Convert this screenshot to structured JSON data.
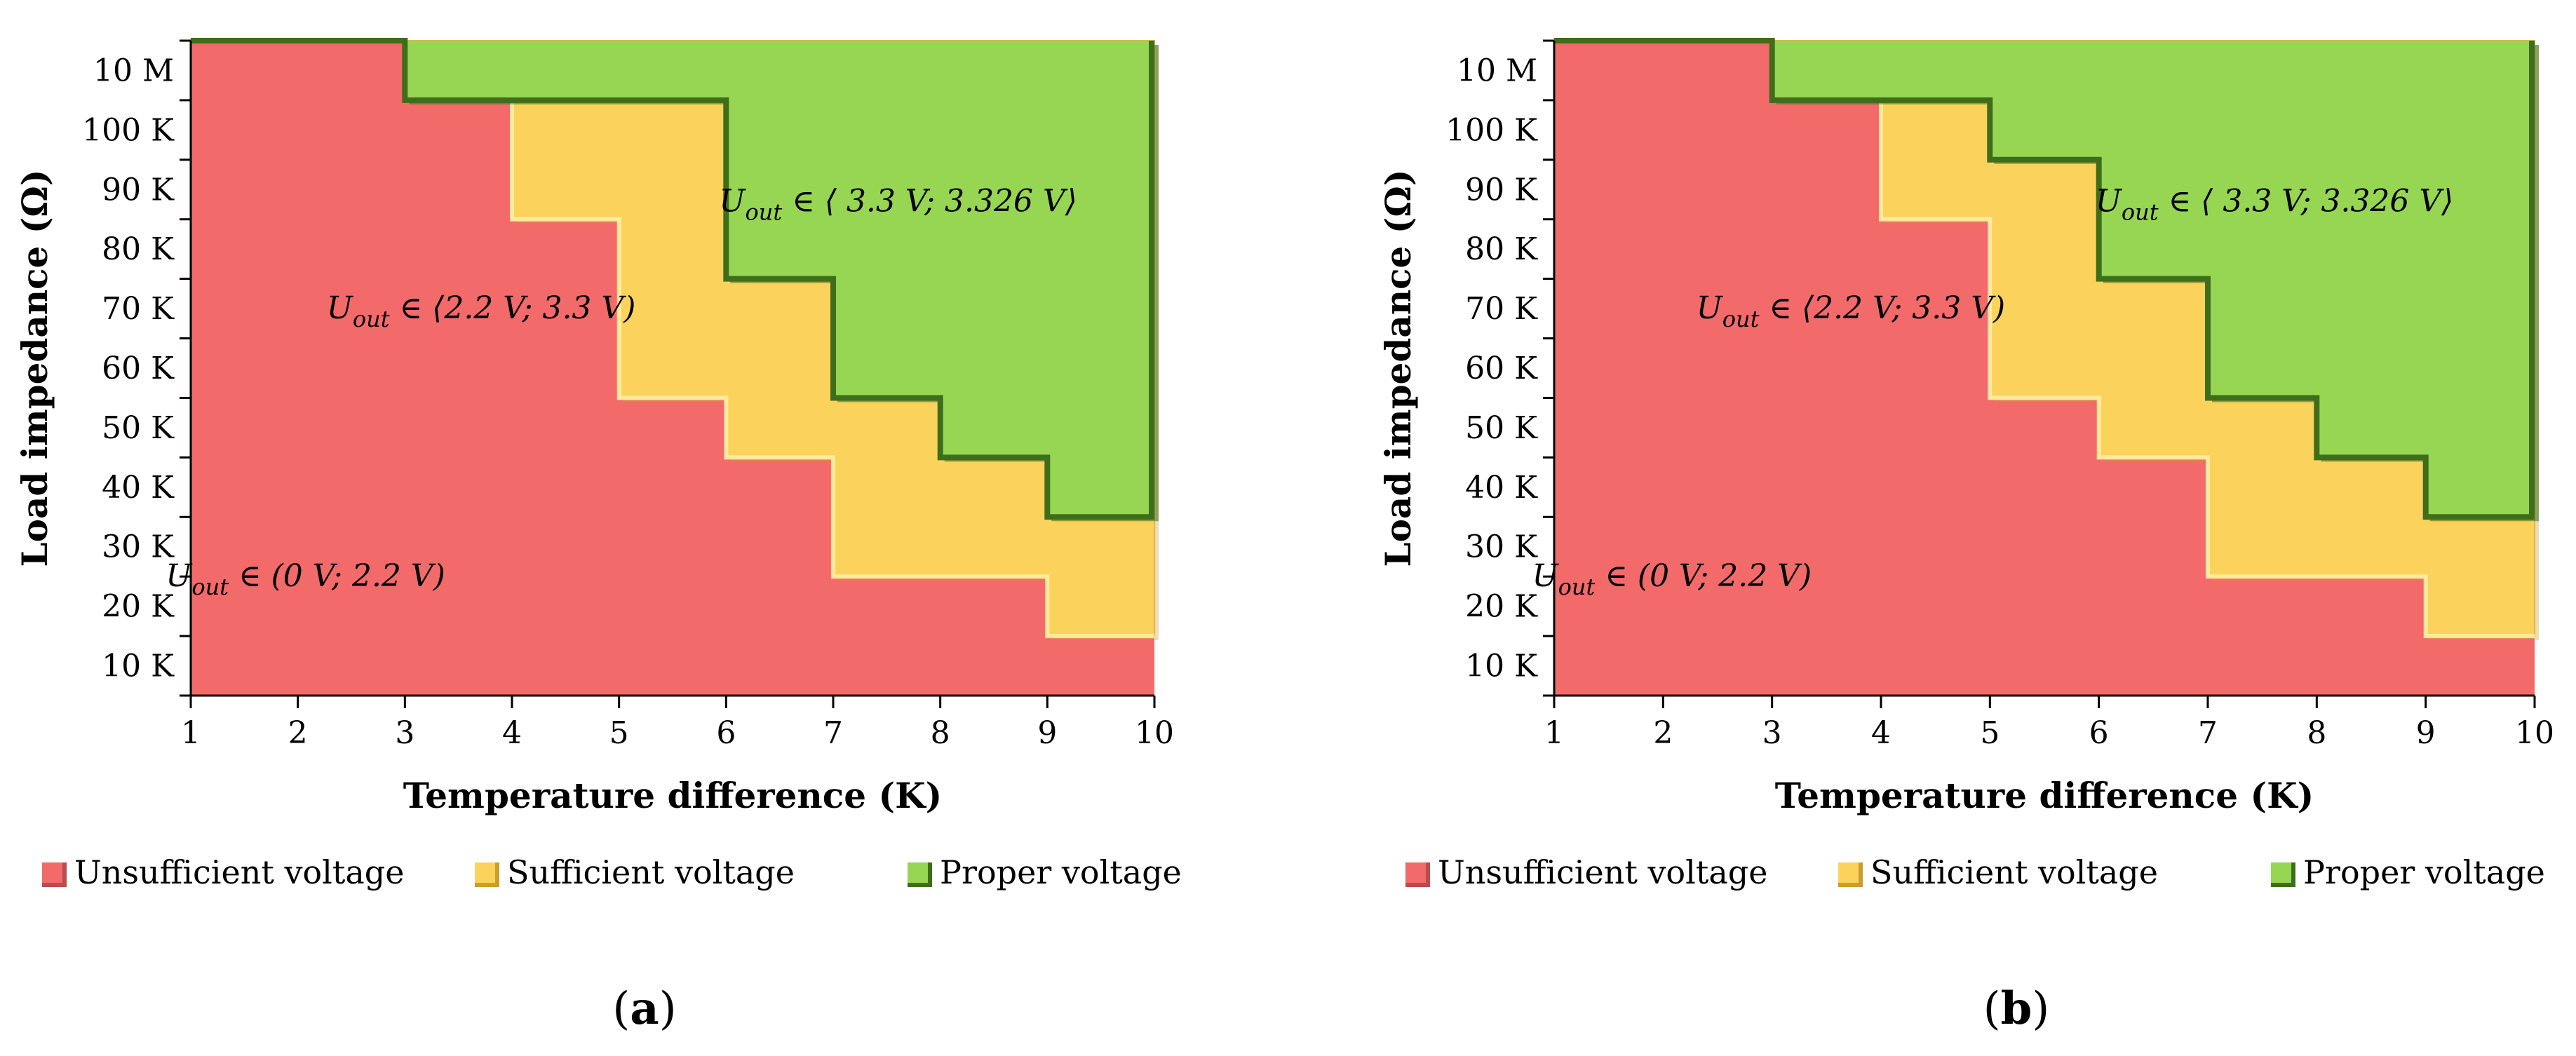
{
  "chart_data": [
    {
      "type": "area",
      "panel_label": "(a)",
      "xlabel": "Temperature difference (K)",
      "ylabel": "Load impedance (Ω)",
      "x_ticks": [
        "1",
        "2",
        "3",
        "4",
        "5",
        "6",
        "7",
        "8",
        "9",
        "10"
      ],
      "y_ticks": [
        "10 K",
        "20 K",
        "30 K",
        "40 K",
        "50 K",
        "60 K",
        "70 K",
        "80 K",
        "90 K",
        "100 K",
        "10 M"
      ],
      "xlim": [
        1,
        10
      ],
      "y_tick_count": 11,
      "regions": {
        "sufficient_boundary": [
          {
            "x": [
              1,
              3
            ],
            "level": 11
          },
          {
            "x": [
              3,
              4
            ],
            "level": 10
          },
          {
            "x": [
              4,
              5
            ],
            "level": 8
          },
          {
            "x": [
              5,
              6
            ],
            "level": 5
          },
          {
            "x": [
              6,
              7
            ],
            "level": 4
          },
          {
            "x": [
              7,
              9
            ],
            "level": 2
          },
          {
            "x": [
              9,
              10
            ],
            "level": 1
          }
        ],
        "proper_boundary": [
          {
            "x": [
              1,
              3
            ],
            "level": 11
          },
          {
            "x": [
              3,
              6
            ],
            "level": 10
          },
          {
            "x": [
              6,
              7
            ],
            "level": 7
          },
          {
            "x": [
              7,
              8
            ],
            "level": 5
          },
          {
            "x": [
              8,
              9
            ],
            "level": 4
          },
          {
            "x": [
              9,
              10
            ],
            "level": 3
          }
        ]
      },
      "annotations": {
        "proper": {
          "x": 7.9,
          "level": 8.3,
          "text": "U_out ∈ ⟨ 3.3 V; 3.326 V⟩"
        },
        "sufficient": {
          "x": 4.3,
          "level": 6.5,
          "text": "U_out ∈ ⟨2.2 V; 3.3 V)"
        },
        "insufficient": {
          "x": 2.6,
          "level": 2.0,
          "text": "U_out ∈ (0 V; 2.2 V)"
        }
      },
      "legend": [
        {
          "label": "Unsufficient voltage",
          "color": "#f26a6a"
        },
        {
          "label": "Sufficient voltage",
          "color": "#fbd35c"
        },
        {
          "label": "Proper voltage",
          "color": "#97d653"
        }
      ]
    },
    {
      "type": "area",
      "panel_label": "(b)",
      "xlabel": "Temperature difference (K)",
      "ylabel": "Load impedance (Ω)",
      "x_ticks": [
        "1",
        "2",
        "3",
        "4",
        "5",
        "6",
        "7",
        "8",
        "9",
        "10"
      ],
      "y_ticks": [
        "10 K",
        "20 K",
        "30 K",
        "40 K",
        "50 K",
        "60 K",
        "70 K",
        "80 K",
        "90 K",
        "100 K",
        "10 M"
      ],
      "xlim": [
        1,
        10
      ],
      "y_tick_count": 11,
      "regions": {
        "sufficient_boundary": [
          {
            "x": [
              1,
              3
            ],
            "level": 11
          },
          {
            "x": [
              3,
              4
            ],
            "level": 10
          },
          {
            "x": [
              4,
              5
            ],
            "level": 8
          },
          {
            "x": [
              5,
              6
            ],
            "level": 5
          },
          {
            "x": [
              6,
              7
            ],
            "level": 4
          },
          {
            "x": [
              7,
              9
            ],
            "level": 2
          },
          {
            "x": [
              9,
              10
            ],
            "level": 1
          }
        ],
        "proper_boundary": [
          {
            "x": [
              1,
              3
            ],
            "level": 11
          },
          {
            "x": [
              3,
              5
            ],
            "level": 10
          },
          {
            "x": [
              5,
              6
            ],
            "level": 9
          },
          {
            "x": [
              6,
              7
            ],
            "level": 7
          },
          {
            "x": [
              7,
              8
            ],
            "level": 5
          },
          {
            "x": [
              8,
              9
            ],
            "level": 4
          },
          {
            "x": [
              9,
              10
            ],
            "level": 3
          }
        ]
      },
      "annotations": {
        "proper": {
          "x": 7.9,
          "level": 8.3,
          "text": "U_out ∈ ⟨ 3.3 V; 3.326 V⟩"
        },
        "sufficient": {
          "x": 4.3,
          "level": 6.5,
          "text": "U_out ∈ ⟨2.2 V; 3.3 V)"
        },
        "insufficient": {
          "x": 2.6,
          "level": 2.0,
          "text": "U_out ∈ (0 V; 2.2 V)"
        }
      },
      "legend": [
        {
          "label": "Unsufficient voltage",
          "color": "#f26a6a"
        },
        {
          "label": "Sufficient voltage",
          "color": "#fbd35c"
        },
        {
          "label": "Proper voltage",
          "color": "#97d653"
        }
      ]
    }
  ],
  "colors": {
    "insufficient": "#f26a6a",
    "insufficient_edge": "#b84d4d",
    "sufficient": "#fbd35c",
    "sufficient_edge": "#c99e2f",
    "proper": "#97d653",
    "proper_edge": "#3e6e1c",
    "axis": "#000000"
  }
}
